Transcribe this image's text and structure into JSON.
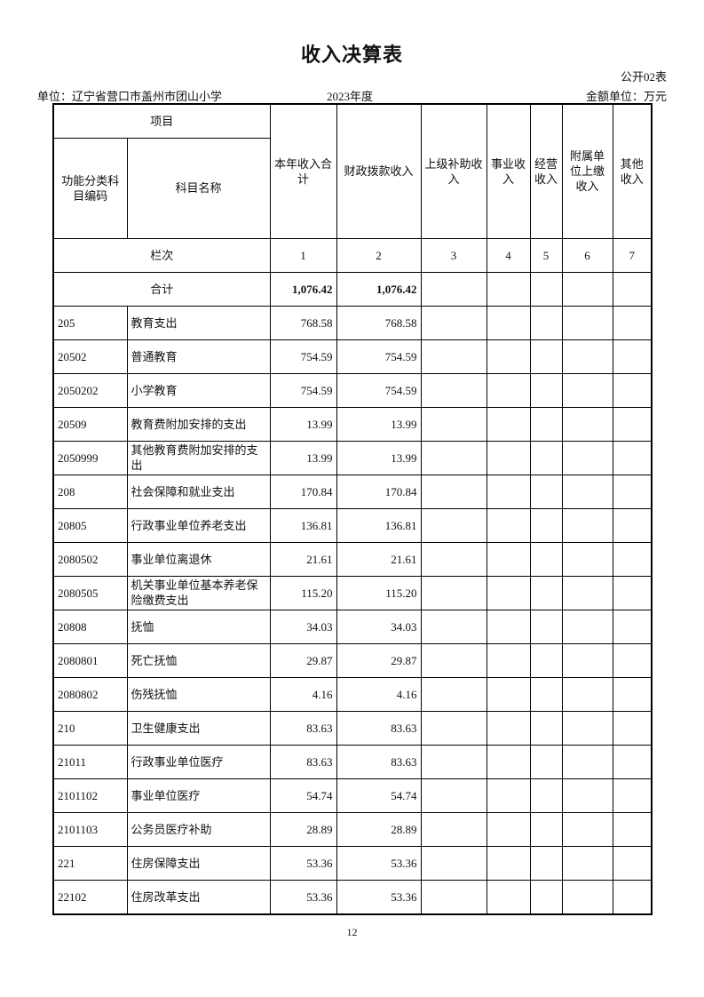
{
  "title": "收入决算表",
  "form_no": "公开02表",
  "unit": "单位：辽宁省营口市盖州市团山小学",
  "year": "2023年度",
  "money_unit": "金额单位：万元",
  "header": {
    "project": "项目",
    "code": "功能分类科目编码",
    "name": "科目名称",
    "cols": [
      "本年收入合计",
      "财政拨款收入",
      "上级补助收入",
      "事业收入",
      "经营收入",
      "附属单位上缴收入",
      "其他收入"
    ],
    "seq_label": "栏次",
    "seq": [
      "1",
      "2",
      "3",
      "4",
      "5",
      "6",
      "7"
    ]
  },
  "total": {
    "label": "合计",
    "values": [
      "1,076.42",
      "1,076.42",
      "",
      "",
      "",
      "",
      ""
    ]
  },
  "rows": [
    {
      "code": "205",
      "name": "教育支出",
      "values": [
        "768.58",
        "768.58"
      ]
    },
    {
      "code": "20502",
      "name": "普通教育",
      "values": [
        "754.59",
        "754.59"
      ]
    },
    {
      "code": "2050202",
      "name": "小学教育",
      "values": [
        "754.59",
        "754.59"
      ]
    },
    {
      "code": "20509",
      "name": "教育费附加安排的支出",
      "values": [
        "13.99",
        "13.99"
      ]
    },
    {
      "code": "2050999",
      "name": "其他教育费附加安排的支出",
      "values": [
        "13.99",
        "13.99"
      ]
    },
    {
      "code": "208",
      "name": "社会保障和就业支出",
      "values": [
        "170.84",
        "170.84"
      ]
    },
    {
      "code": "20805",
      "name": "行政事业单位养老支出",
      "values": [
        "136.81",
        "136.81"
      ]
    },
    {
      "code": "2080502",
      "name": "事业单位离退休",
      "values": [
        "21.61",
        "21.61"
      ]
    },
    {
      "code": "2080505",
      "name": "机关事业单位基本养老保险缴费支出",
      "values": [
        "115.20",
        "115.20"
      ]
    },
    {
      "code": "20808",
      "name": "抚恤",
      "values": [
        "34.03",
        "34.03"
      ]
    },
    {
      "code": "2080801",
      "name": "死亡抚恤",
      "values": [
        "29.87",
        "29.87"
      ]
    },
    {
      "code": "2080802",
      "name": "伤残抚恤",
      "values": [
        "4.16",
        "4.16"
      ]
    },
    {
      "code": "210",
      "name": "卫生健康支出",
      "values": [
        "83.63",
        "83.63"
      ]
    },
    {
      "code": "21011",
      "name": "行政事业单位医疗",
      "values": [
        "83.63",
        "83.63"
      ]
    },
    {
      "code": "2101102",
      "name": "事业单位医疗",
      "values": [
        "54.74",
        "54.74"
      ]
    },
    {
      "code": "2101103",
      "name": "公务员医疗补助",
      "values": [
        "28.89",
        "28.89"
      ]
    },
    {
      "code": "221",
      "name": "住房保障支出",
      "values": [
        "53.36",
        "53.36"
      ]
    },
    {
      "code": "22102",
      "name": "住房改革支出",
      "values": [
        "53.36",
        "53.36"
      ]
    }
  ],
  "page_number": "12"
}
